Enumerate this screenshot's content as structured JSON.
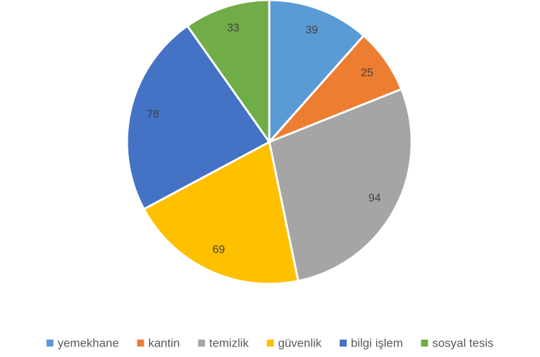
{
  "chart_data": {
    "type": "pie",
    "categories": [
      "yemekhane",
      "kantin",
      "temizlik",
      "güvenlik",
      "bilgi işlem",
      "sosyal tesis"
    ],
    "values": [
      39,
      25,
      94,
      69,
      78,
      33
    ],
    "colors": [
      "#5b9bd5",
      "#ed7d31",
      "#a5a5a5",
      "#ffc000",
      "#4472c4",
      "#70ad47"
    ],
    "legend": "bottom"
  }
}
